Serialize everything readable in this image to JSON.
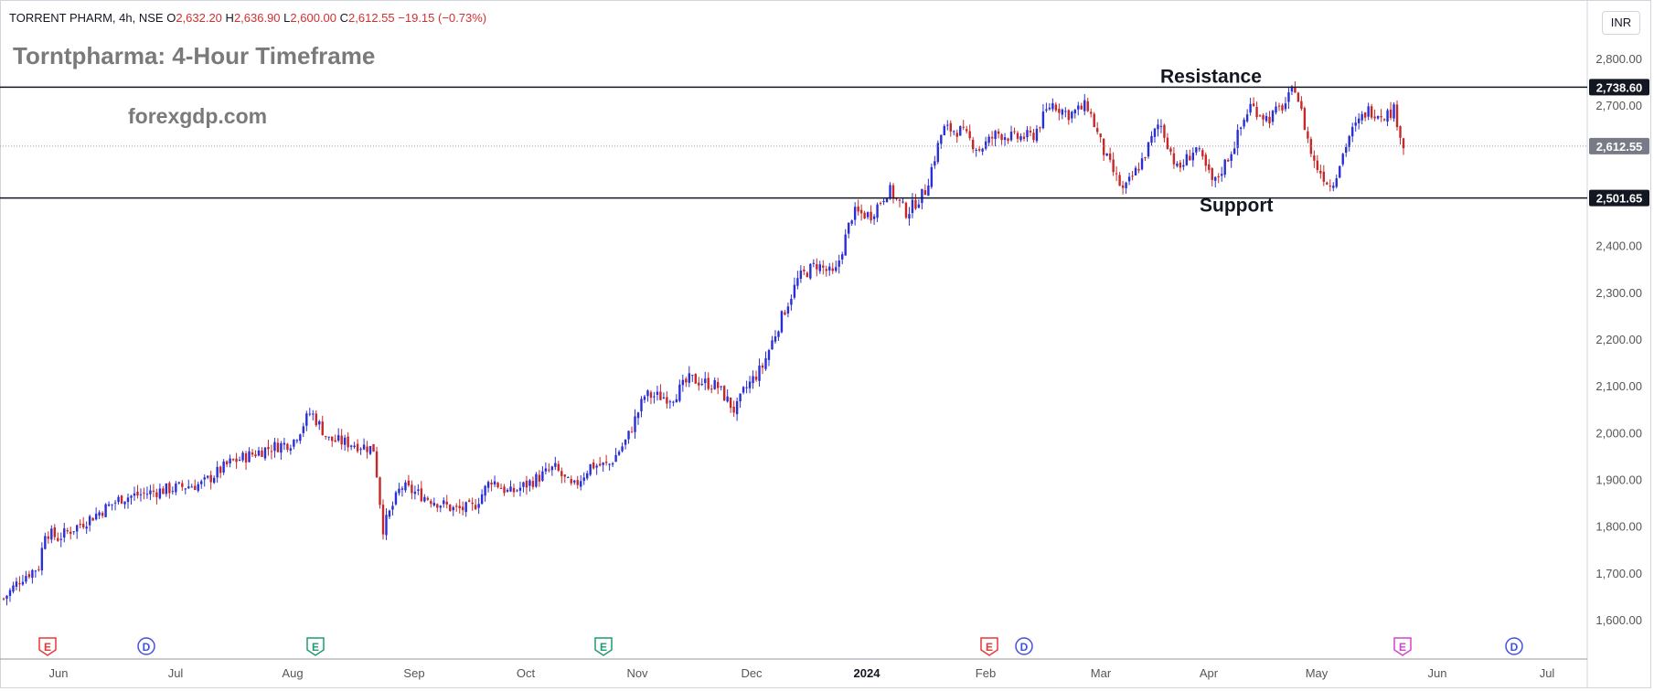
{
  "header": {
    "symbol": "TORRENT PHARM, 4h, NSE",
    "open_label": "O",
    "open": "2,632.20",
    "high_label": "H",
    "high": "2,636.90",
    "low_label": "L",
    "low": "2,600.00",
    "close_label": "C",
    "close": "2,612.55",
    "change": "−19.15 (−0.73%)"
  },
  "title": "Torntpharma: 4-Hour Timeframe",
  "brand": "forexgdp.com",
  "currency": "INR",
  "colors": {
    "up": "#2a2ed6",
    "down": "#c62828",
    "ohlc_text": "#d32f2f",
    "price_badge": "#787b86",
    "level_badge": "#131722",
    "axis_text": "#555555"
  },
  "chart_data": {
    "type": "candlestick",
    "ylim": [
      1555,
      2815
    ],
    "y_ticks": [
      {
        "label": "2,800.00",
        "value": 2800
      },
      {
        "label": "2,700.00",
        "value": 2700
      },
      {
        "label": "2,400.00",
        "value": 2400
      },
      {
        "label": "2,300.00",
        "value": 2300
      },
      {
        "label": "2,200.00",
        "value": 2200
      },
      {
        "label": "2,100.00",
        "value": 2100
      },
      {
        "label": "2,000.00",
        "value": 2000
      },
      {
        "label": "1,900.00",
        "value": 1900
      },
      {
        "label": "1,800.00",
        "value": 1800
      },
      {
        "label": "1,700.00",
        "value": 1700
      },
      {
        "label": "1,600.00",
        "value": 1600
      }
    ],
    "x_ticks": [
      "Jun",
      "Jul",
      "Aug",
      "Sep",
      "Oct",
      "Nov",
      "Dec",
      "2024",
      "Feb",
      "Mar",
      "Apr",
      "May",
      "Jun",
      "Jul"
    ],
    "levels": [
      {
        "name": "Resistance",
        "value": 2738.6,
        "label": "2,738.60"
      },
      {
        "name": "Support",
        "value": 2501.65,
        "label": "2,501.65"
      }
    ],
    "last_price": {
      "value": 2612.55,
      "label": "2,612.55"
    },
    "price_path": [
      [
        0,
        1645
      ],
      [
        2,
        1690
      ],
      [
        4,
        1715
      ],
      [
        4.5,
        1790
      ],
      [
        6,
        1775
      ],
      [
        9,
        1810
      ],
      [
        13,
        1860
      ],
      [
        17,
        1875
      ],
      [
        20,
        1885
      ],
      [
        22,
        1890
      ],
      [
        25,
        1935
      ],
      [
        29,
        1965
      ],
      [
        32,
        1980
      ],
      [
        34,
        2045
      ],
      [
        36,
        1985
      ],
      [
        39,
        1975
      ],
      [
        41,
        1965
      ],
      [
        42,
        1795
      ],
      [
        44,
        1885
      ],
      [
        47,
        1860
      ],
      [
        50,
        1835
      ],
      [
        52,
        1840
      ],
      [
        54,
        1900
      ],
      [
        56,
        1870
      ],
      [
        58,
        1890
      ],
      [
        61,
        1925
      ],
      [
        63,
        1880
      ],
      [
        65,
        1930
      ],
      [
        67,
        1930
      ],
      [
        69,
        1985
      ],
      [
        71,
        2080
      ],
      [
        74,
        2075
      ],
      [
        76,
        2115
      ],
      [
        79,
        2100
      ],
      [
        81,
        2045
      ],
      [
        82,
        2090
      ],
      [
        84,
        2140
      ],
      [
        86,
        2240
      ],
      [
        88,
        2330
      ],
      [
        90,
        2360
      ],
      [
        92,
        2335
      ],
      [
        94,
        2470
      ],
      [
        96,
        2465
      ],
      [
        98,
        2520
      ],
      [
        100,
        2470
      ],
      [
        102,
        2515
      ],
      [
        104,
        2650
      ],
      [
        106,
        2645
      ],
      [
        108,
        2605
      ],
      [
        110,
        2640
      ],
      [
        112,
        2630
      ],
      [
        114,
        2635
      ],
      [
        116,
        2705
      ],
      [
        118,
        2680
      ],
      [
        120,
        2700
      ],
      [
        122,
        2590
      ],
      [
        124,
        2515
      ],
      [
        126,
        2580
      ],
      [
        128,
        2665
      ],
      [
        130,
        2560
      ],
      [
        132,
        2610
      ],
      [
        134,
        2530
      ],
      [
        136,
        2605
      ],
      [
        138,
        2700
      ],
      [
        140,
        2670
      ],
      [
        142,
        2705
      ],
      [
        143,
        2740
      ],
      [
        145,
        2580
      ],
      [
        147,
        2525
      ],
      [
        149,
        2635
      ],
      [
        151,
        2690
      ],
      [
        153,
        2680
      ],
      [
        154,
        2690
      ],
      [
        155,
        2612
      ]
    ],
    "events": [
      {
        "label": "E",
        "kind": "earnings-red"
      },
      {
        "label": "D",
        "kind": "dividend"
      },
      {
        "label": "E",
        "kind": "earnings-green"
      },
      {
        "label": "E",
        "kind": "earnings-green"
      },
      {
        "label": "E",
        "kind": "earnings-red"
      },
      {
        "label": "D",
        "kind": "dividend"
      },
      {
        "label": "E",
        "kind": "earnings-pink"
      },
      {
        "label": "D",
        "kind": "dividend"
      }
    ]
  }
}
